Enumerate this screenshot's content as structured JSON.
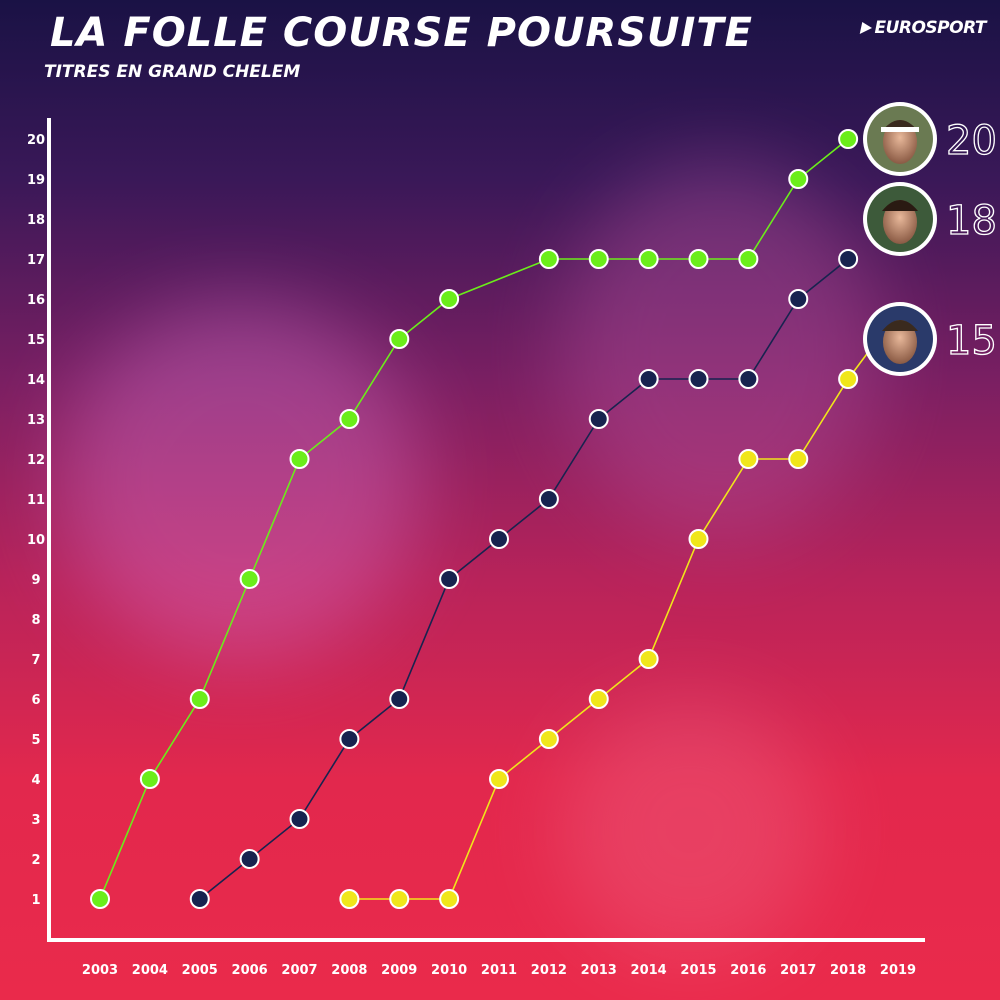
{
  "header": {
    "title": "LA FOLLE COURSE POURSUITE",
    "subtitle": "TITRES EN GRAND CHELEM",
    "brand": "EUROSPORT"
  },
  "chart_data": {
    "type": "line",
    "title": "LA FOLLE COURSE POURSUITE",
    "subtitle": "TITRES EN GRAND CHELEM",
    "xlabel": "",
    "ylabel": "",
    "x_ticks": [
      "2003",
      "2004",
      "2005",
      "2006",
      "2007",
      "2008",
      "2009",
      "2010",
      "2011",
      "2012",
      "2013",
      "2014",
      "2015",
      "2016",
      "2017",
      "2018",
      "2019"
    ],
    "y_ticks": [
      "1",
      "2",
      "3",
      "4",
      "5",
      "6",
      "7",
      "8",
      "9",
      "10",
      "11",
      "12",
      "13",
      "14",
      "15",
      "16",
      "17",
      "18",
      "19",
      "20"
    ],
    "xlim": [
      2003,
      2019
    ],
    "ylim": [
      1,
      20
    ],
    "grid": false,
    "legend": "none",
    "series": [
      {
        "color": "#6bed1a",
        "end_label": "20",
        "avatar": "player-1-avatar",
        "points": [
          [
            2003,
            1
          ],
          [
            2004,
            4
          ],
          [
            2005,
            6
          ],
          [
            2006,
            9
          ],
          [
            2007,
            12
          ],
          [
            2008,
            13
          ],
          [
            2009,
            15
          ],
          [
            2010,
            16
          ],
          [
            2012,
            17
          ],
          [
            2013,
            17
          ],
          [
            2014,
            17
          ],
          [
            2015,
            17
          ],
          [
            2016,
            17
          ],
          [
            2017,
            19
          ],
          [
            2018,
            20
          ]
        ]
      },
      {
        "color": "#17234f",
        "end_label": "18",
        "avatar": "player-2-avatar",
        "points": [
          [
            2005,
            1
          ],
          [
            2006,
            2
          ],
          [
            2007,
            3
          ],
          [
            2008,
            5
          ],
          [
            2009,
            6
          ],
          [
            2010,
            9
          ],
          [
            2011,
            10
          ],
          [
            2012,
            11
          ],
          [
            2013,
            13
          ],
          [
            2014,
            14
          ],
          [
            2015,
            14
          ],
          [
            2016,
            14
          ],
          [
            2017,
            16
          ],
          [
            2018,
            17
          ]
        ]
      },
      {
        "color": "#f0e61a",
        "end_label": "15",
        "avatar": "player-3-avatar",
        "points": [
          [
            2008,
            1
          ],
          [
            2009,
            1
          ],
          [
            2010,
            1
          ],
          [
            2011,
            4
          ],
          [
            2012,
            5
          ],
          [
            2013,
            6
          ],
          [
            2014,
            7
          ],
          [
            2015,
            10
          ],
          [
            2016,
            12
          ],
          [
            2017,
            12
          ],
          [
            2018,
            14
          ]
        ]
      }
    ]
  }
}
